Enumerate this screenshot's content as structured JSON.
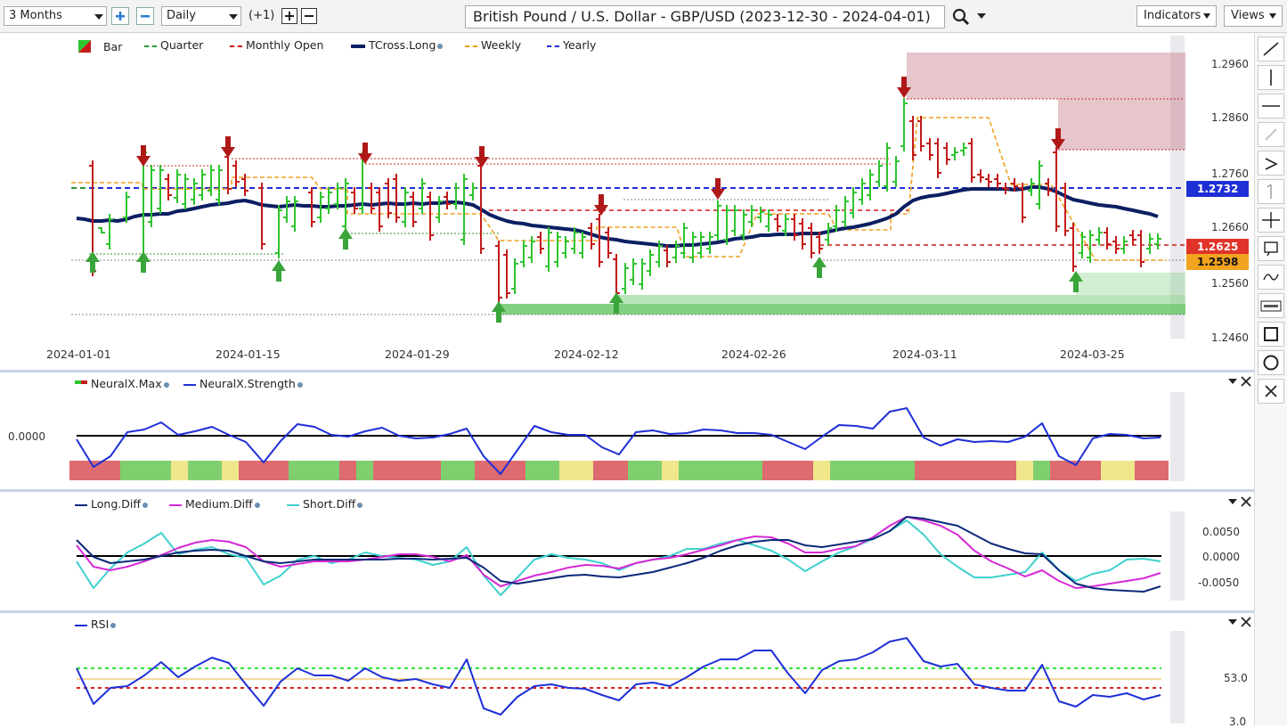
{
  "toolbar": {
    "range": "3 Months",
    "interval": "Daily",
    "offset": "(+1)",
    "title": "British Pound / U.S. Dollar - GBP/USD (2023-12-30 - 2024-04-01)",
    "indicators": "Indicators",
    "views": "Views"
  },
  "main": {
    "legend": [
      {
        "label": "Bar",
        "icon": "bar-swatch-icon"
      },
      {
        "label": "Quarter",
        "color": "#2e9a2e",
        "style": "dashed"
      },
      {
        "label": "Monthly Open",
        "color": "#d11919",
        "style": "dashed"
      },
      {
        "label": "TCross.Long",
        "color": "#0b1f63",
        "style": "solid-thick"
      },
      {
        "label": "Weekly",
        "color": "#f0a020",
        "style": "dashed"
      },
      {
        "label": "Yearly",
        "color": "#1e2fd6",
        "style": "dashed"
      }
    ],
    "y_ticks": [
      "1.2960",
      "1.2860",
      "1.2760",
      "1.2660",
      "1.2560",
      "1.2460"
    ],
    "x_ticks": [
      "2024-01-01",
      "2024-01-15",
      "2024-01-29",
      "2024-02-12",
      "2024-02-26",
      "2024-03-11",
      "2024-03-25"
    ],
    "tags": [
      {
        "value": "1.2732",
        "bg": "#1e2fd6",
        "fg": "#ffffff"
      },
      {
        "value": "1.2625",
        "bg": "#e0332a",
        "fg": "#ffffff"
      },
      {
        "value": "1.2598",
        "bg": "#f2a31f",
        "fg": "#111111"
      }
    ]
  },
  "neural": {
    "legend": [
      {
        "label": "NeuralX.Max",
        "icon": "neural-max-swatch-icon"
      },
      {
        "label": "NeuralX.Strength",
        "color": "#1e2fd6"
      }
    ],
    "zero_label": "0.0000"
  },
  "diff": {
    "legend": [
      {
        "label": "Long.Diff",
        "color": "#0b2a7a"
      },
      {
        "label": "Medium.Diff",
        "color": "#d62ad6"
      },
      {
        "label": "Short.Diff",
        "color": "#3fd0d0"
      }
    ],
    "y_ticks": [
      "0.0050",
      "0.0000",
      "-0.0050"
    ]
  },
  "rsi": {
    "legend": [
      {
        "label": "RSI",
        "color": "#1e2fd6"
      }
    ],
    "y_ticks": [
      "53.0",
      "3.0"
    ]
  },
  "colors": {
    "bull": "#2ec42e",
    "bear": "#c41a1a",
    "strength_line": "#1e2fd6",
    "tcross": "#0b1f63",
    "zero_line": "#000000"
  }
}
